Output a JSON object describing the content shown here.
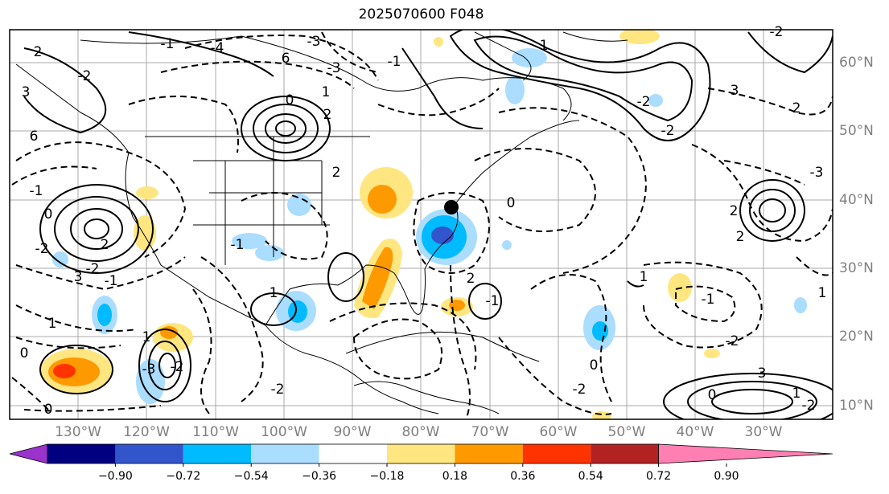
{
  "title": "2025070600 F048",
  "lon_labels": [
    "130°W",
    "120°W",
    "110°W",
    "100°W",
    "90°W",
    "80°W",
    "70°W",
    "60°W",
    "50°W",
    "40°W",
    "30°W"
  ],
  "lat_labels": [
    "60°N",
    "50°N",
    "40°N",
    "30°N",
    "20°N",
    "10°N"
  ],
  "colorbar": {
    "ticks": [
      "−0.90",
      "−0.72",
      "−0.54",
      "−0.36",
      "−0.18",
      "0.18",
      "0.36",
      "0.54",
      "0.72",
      "0.90"
    ],
    "colors": [
      "#9933cc",
      "#000080",
      "#3355cc",
      "#00bbff",
      "#aaddff",
      "#ffffff",
      "#ffe680",
      "#ff9900",
      "#ff3300",
      "#b22222",
      "#ff7fb3"
    ]
  },
  "contour_labels": [
    "2",
    "3",
    "6",
    "-2",
    "-1",
    "-4",
    "-3",
    "6",
    "-3",
    "1",
    "2",
    "0",
    "-1",
    "1",
    "2",
    "-2",
    "-2",
    "3",
    "-1",
    "0",
    "-2",
    "2",
    "-1",
    "3",
    "1",
    "0",
    "-2",
    "1",
    "-3",
    "-2",
    "0",
    "-2",
    "-1",
    "1",
    "2",
    "0",
    "-1",
    "2",
    "-2",
    "0",
    "1",
    "-1",
    "-2",
    "3",
    "2",
    "2",
    "0",
    "-2",
    "1",
    "1",
    "-3",
    "-2"
  ],
  "icons": [
    "storm-center-marker"
  ]
}
